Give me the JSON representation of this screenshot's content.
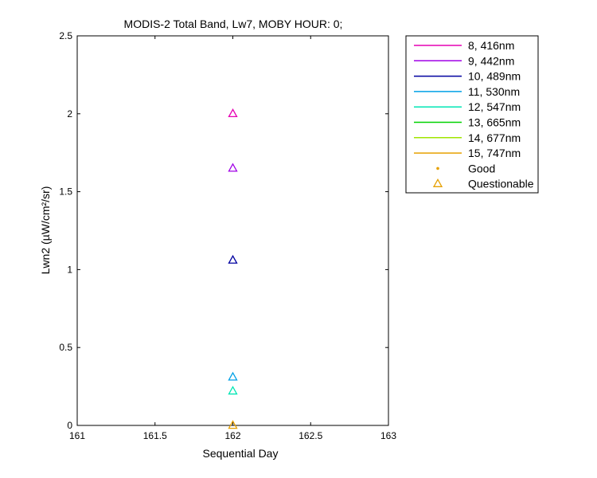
{
  "chart_data": {
    "type": "scatter",
    "title": "MODIS-2 Total Band, Lw7, MOBY HOUR: 0;",
    "xlabel": "Sequential Day",
    "ylabel": "Lwn2 (µW/cm²/sr)",
    "xlim": [
      161,
      163
    ],
    "ylim": [
      0,
      2.5
    ],
    "xticks": [
      "161",
      "161.5",
      "162",
      "162.5",
      "163"
    ],
    "xtick_values": [
      161,
      161.5,
      162,
      162.5,
      163
    ],
    "yticks": [
      "0",
      "0.5",
      "1",
      "1.5",
      "2",
      "2.5"
    ],
    "ytick_values": [
      0,
      0.5,
      1,
      1.5,
      2,
      2.5
    ],
    "grid": false,
    "legend_position": "outside-top-right",
    "series": [
      {
        "name": "8, 416nm",
        "color": "#e600b4",
        "x": [
          162
        ],
        "y": [
          2.0
        ]
      },
      {
        "name": "9, 442nm",
        "color": "#a000e6",
        "x": [
          162
        ],
        "y": [
          1.65
        ]
      },
      {
        "name": "10, 489nm",
        "color": "#0000a0",
        "x": [
          162
        ],
        "y": [
          1.06
        ]
      },
      {
        "name": "11, 530nm",
        "color": "#00a0e6",
        "x": [
          162
        ],
        "y": [
          0.31
        ]
      },
      {
        "name": "12, 547nm",
        "color": "#00e6b4",
        "x": [
          162
        ],
        "y": [
          0.22
        ]
      },
      {
        "name": "13, 665nm",
        "color": "#00d200",
        "x": [],
        "y": []
      },
      {
        "name": "14, 677nm",
        "color": "#a0e600",
        "x": [],
        "y": []
      },
      {
        "name": "15, 747nm",
        "color": "#e6a000",
        "x": [
          162
        ],
        "y": [
          0.0
        ]
      }
    ],
    "marker_legend": [
      {
        "name": "Good",
        "marker": "dot",
        "color": "#e6a000"
      },
      {
        "name": "Questionable",
        "marker": "triangle",
        "color": "#e6a000"
      }
    ]
  }
}
